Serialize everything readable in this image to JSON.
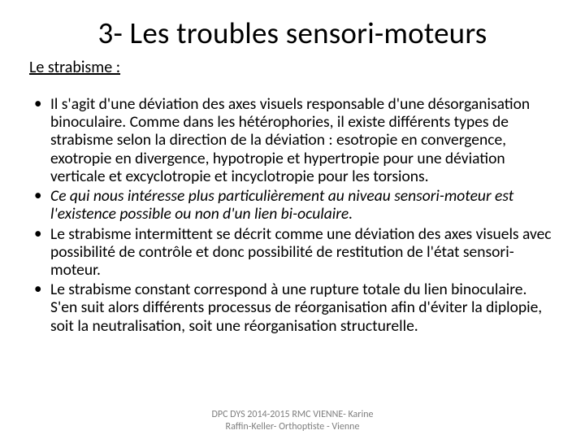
{
  "title": "3- Les troubles sensori-moteurs",
  "subtitle": "Le strabisme :",
  "bullets": [
    {
      "text": "Il s'agit d'une déviation des axes visuels responsable d'une désorganisation binoculaire. Comme dans les hétérophories, il existe différents types de strabisme selon la direction de la déviation : esotropie en convergence, exotropie en divergence, hypotropie et hypertropie pour une déviation verticale et excyclotropie et incyclotropie pour les torsions.",
      "italic": false
    },
    {
      "text": "Ce qui nous intéresse plus particulièrement au niveau sensori-moteur est l'existence possible ou non d'un lien bi-oculaire.",
      "italic": true
    },
    {
      "text": "Le strabisme intermittent se décrit comme une déviation des axes visuels avec possibilité de contrôle et donc possibilité de restitution de l'état sensori-moteur.",
      "italic": false
    },
    {
      "text": "Le strabisme constant correspond à une rupture totale du lien binoculaire. S'en suit alors différents processus de réorganisation afin d'éviter la diplopie, soit la neutralisation, soit une réorganisation structurelle.",
      "italic": false
    }
  ],
  "footer_line1": "DPC DYS 2014-2015 RMC VIENNE- Karine",
  "footer_line2": "Raffin-Keller- Orthoptiste - Vienne",
  "colors": {
    "background": "#ffffff",
    "text": "#000000",
    "footer": "#7f7f7f"
  },
  "fonts": {
    "title_size": 37,
    "subtitle_size": 20,
    "body_size": 19.5,
    "footer_size": 12
  }
}
